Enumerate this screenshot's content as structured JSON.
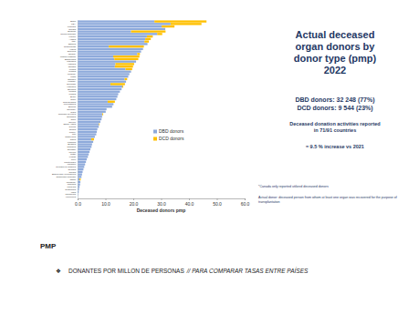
{
  "chart_data": {
    "type": "bar",
    "orientation": "horizontal",
    "stacked": true,
    "grid": false,
    "legend": "right",
    "title": "Actual deceased organ donors by donor type (pmp)",
    "subtitle": "2022",
    "x_label": "Deceased donors pmp",
    "xlim": [
      0,
      60
    ],
    "xticks": [
      {
        "value": 0,
        "label": "0.0"
      },
      {
        "value": 10,
        "label": "10.0"
      },
      {
        "value": 20,
        "label": "20.0"
      },
      {
        "value": 30,
        "label": "30.0"
      },
      {
        "value": 40,
        "label": "40.0"
      },
      {
        "value": 50,
        "label": "50.0"
      },
      {
        "value": 60,
        "label": "60.0"
      }
    ],
    "categories": [
      "Spain",
      "USA",
      "Portugal",
      "Croatia",
      "Belgium",
      "Czech Republic",
      "France",
      "Austria",
      "Italy",
      "Estonia",
      "Netherlands",
      "Latvia",
      "Slovenia",
      "Norway",
      "United Kingdom",
      "Switzerland",
      "Lithuania",
      "Australia",
      "Canada",
      "Ireland",
      "Finland",
      "Uruguay",
      "Malta",
      "Sweden",
      "Hungary",
      "Denmark",
      "Argentina",
      "Slovakia",
      "Iceland",
      "Poland",
      "Brazil",
      "Israel",
      "New Zealand",
      "Luxembourg",
      "Belarus",
      "Germany",
      "Cuba",
      "Republic of Korea",
      "Colombia",
      "Chile",
      "Greece",
      "Saudi Arabia",
      "Cyprus",
      "Serbia",
      "Turkey",
      "Iran",
      "Costa Rica",
      "China",
      "Panama",
      "Bulgaria",
      "Romania",
      "Ecuador",
      "Mexico",
      "Qatar",
      "Kuwait",
      "Peru",
      "Montenegro",
      "Lebanon",
      "Republic of Moldova",
      "Georgia",
      "Tunisia",
      "Bosnia and Herzegovina",
      "Dominican Republic",
      "Japan",
      "Paraguay",
      "Thailand",
      "Malaysia",
      "Guatemala",
      "India",
      "Philippines",
      "Venezuela"
    ],
    "series": [
      {
        "name": "DBD donors",
        "color": "#8eaadb",
        "values": [
          27.6,
          33.4,
          30.2,
          31.5,
          19.2,
          28.6,
          24.9,
          24.3,
          24.0,
          25.1,
          11.2,
          23.5,
          22.8,
          21.4,
          12.8,
          13.2,
          21.0,
          13.6,
          13.4,
          17.2,
          19.2,
          18.6,
          18.2,
          16.9,
          17.4,
          11.8,
          16.1,
          15.8,
          15.2,
          14.6,
          14.3,
          13.9,
          10.8,
          12.9,
          12.4,
          10.4,
          10.1,
          8.9,
          8.8,
          8.6,
          8.2,
          7.7,
          7.6,
          7.1,
          6.9,
          6.7,
          6.2,
          4.9,
          5.6,
          5.2,
          5.0,
          4.6,
          4.3,
          4.0,
          3.7,
          3.3,
          3.0,
          2.7,
          2.4,
          2.1,
          1.8,
          1.6,
          1.4,
          0.7,
          1.0,
          0.9,
          0.7,
          0.5,
          0.4,
          0.2,
          0.1
        ]
      },
      {
        "name": "DCD donors",
        "color": "#ffc000",
        "values": [
          18.7,
          11.1,
          4.6,
          0,
          12.4,
          1.8,
          2.1,
          2.0,
          1.6,
          0,
          12.6,
          0,
          0,
          1.0,
          9.4,
          8.6,
          0,
          6.7,
          6.5,
          2.4,
          0,
          0,
          0,
          0.9,
          0,
          5.2,
          0.3,
          0,
          0,
          0,
          0,
          0,
          2.6,
          0,
          0,
          0,
          0,
          0.3,
          0,
          0,
          0,
          0.2,
          0,
          0,
          0,
          0,
          0,
          1.0,
          0,
          0,
          0,
          0,
          0,
          0,
          0,
          0,
          0,
          0,
          0,
          0,
          0,
          0,
          0,
          0.4,
          0,
          0,
          0,
          0,
          0,
          0,
          0
        ]
      }
    ],
    "annotations": [
      "DBD donors: 32 248 (77%)",
      "DCD donors: 9 544 (23%)",
      "Deceased donation activities reported in 71/91 countries",
      "≈ 9.5 % increase vs 2021",
      "*Canada only reported utilized deceased donors",
      "Actual donor: deceased person from whom at least one organ was recovered for the purpose of transplantation"
    ]
  },
  "notes": {
    "heading": "PMP",
    "bullet": {
      "symbol": "❖",
      "text": "DONANTES POR MILLON DE PERSONAS",
      "emphasis": "// PARA COMPARAR TASAS ENTRE PAÍSES"
    }
  }
}
